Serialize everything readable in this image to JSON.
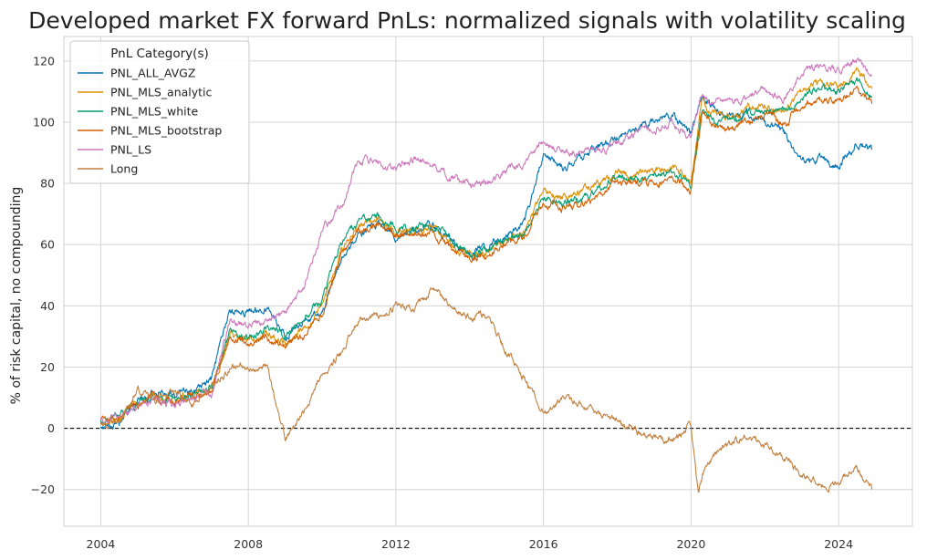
{
  "chart_data": {
    "type": "line",
    "title": "Developed market FX forward PnLs: normalized signals with volatility scaling",
    "xlabel": "",
    "ylabel": "% of risk capital, no compounding",
    "xlim": [
      2003.0,
      2026.0
    ],
    "ylim": [
      -32,
      128
    ],
    "x_ticks": [
      2004,
      2008,
      2012,
      2016,
      2020,
      2024
    ],
    "y_ticks": [
      -20,
      0,
      20,
      40,
      60,
      80,
      100,
      120
    ],
    "grid": true,
    "zero_line": {
      "y": 0,
      "style": "dashed",
      "color": "#000000"
    },
    "legend": {
      "title": "PnL Category(s)",
      "placement": "top-left"
    },
    "series": [
      {
        "name": "PNL_ALL_AVGZ",
        "color": "#0173b2",
        "x": [
          2004.0,
          2004.5,
          2005.0,
          2005.5,
          2006.0,
          2006.5,
          2007.0,
          2007.5,
          2008.0,
          2008.5,
          2009.0,
          2009.5,
          2010.0,
          2010.5,
          2011.0,
          2011.5,
          2012.0,
          2012.5,
          2013.0,
          2013.5,
          2014.0,
          2014.5,
          2015.0,
          2015.5,
          2016.0,
          2016.5,
          2017.0,
          2017.5,
          2018.0,
          2018.5,
          2019.0,
          2019.5,
          2020.0,
          2020.3,
          2020.6,
          2021.0,
          2021.5,
          2022.0,
          2022.5,
          2023.0,
          2023.5,
          2024.0,
          2024.5,
          2024.9
        ],
        "y": [
          0,
          1,
          10,
          12,
          11,
          12,
          16,
          38,
          38,
          40,
          30,
          35,
          38,
          55,
          63,
          67,
          62,
          64,
          66,
          62,
          57,
          60,
          63,
          68,
          90,
          85,
          88,
          92,
          95,
          98,
          100,
          102,
          97,
          108,
          105,
          102,
          103,
          100,
          97,
          88,
          88,
          86,
          93,
          91
        ]
      },
      {
        "name": "PNL_MLS_analytic",
        "color": "#de8f05",
        "x": [
          2004.0,
          2004.5,
          2005.0,
          2005.5,
          2006.0,
          2006.5,
          2007.0,
          2007.5,
          2008.0,
          2008.5,
          2009.0,
          2009.5,
          2010.0,
          2010.5,
          2011.0,
          2011.5,
          2012.0,
          2012.5,
          2013.0,
          2013.5,
          2014.0,
          2014.5,
          2015.0,
          2015.5,
          2016.0,
          2016.5,
          2017.0,
          2017.5,
          2018.0,
          2018.5,
          2019.0,
          2019.5,
          2020.0,
          2020.3,
          2020.6,
          2021.0,
          2021.5,
          2022.0,
          2022.5,
          2023.0,
          2023.5,
          2024.0,
          2024.5,
          2024.9
        ],
        "y": [
          2,
          4,
          8,
          10,
          9,
          11,
          13,
          30,
          29,
          31,
          28,
          32,
          40,
          58,
          66,
          68,
          64,
          64,
          66,
          60,
          56,
          58,
          62,
          64,
          78,
          75,
          77,
          80,
          84,
          83,
          84,
          85,
          80,
          106,
          103,
          102,
          104,
          106,
          104,
          110,
          113,
          112,
          117,
          111
        ]
      },
      {
        "name": "PNL_MLS_white",
        "color": "#029e73",
        "x": [
          2004.0,
          2004.5,
          2005.0,
          2005.5,
          2006.0,
          2006.5,
          2007.0,
          2007.5,
          2008.0,
          2008.5,
          2009.0,
          2009.5,
          2010.0,
          2010.5,
          2011.0,
          2011.5,
          2012.0,
          2012.5,
          2013.0,
          2013.5,
          2014.0,
          2014.5,
          2015.0,
          2015.5,
          2016.0,
          2016.5,
          2017.0,
          2017.5,
          2018.0,
          2018.5,
          2019.0,
          2019.5,
          2020.0,
          2020.3,
          2020.6,
          2021.0,
          2021.5,
          2022.0,
          2022.5,
          2023.0,
          2023.5,
          2024.0,
          2024.5,
          2024.9
        ],
        "y": [
          2,
          4,
          8,
          10,
          9,
          11,
          13,
          31,
          30,
          32,
          30,
          36,
          42,
          60,
          68,
          69,
          65,
          65,
          67,
          61,
          57,
          59,
          62,
          64,
          76,
          74,
          75,
          78,
          82,
          82,
          82,
          83,
          79,
          104,
          101,
          100,
          102,
          104,
          103,
          108,
          111,
          110,
          114,
          108
        ]
      },
      {
        "name": "PNL_MLS_bootstrap",
        "color": "#d55e00",
        "x": [
          2004.0,
          2004.5,
          2005.0,
          2005.5,
          2006.0,
          2006.5,
          2007.0,
          2007.5,
          2008.0,
          2008.5,
          2009.0,
          2009.5,
          2010.0,
          2010.5,
          2011.0,
          2011.5,
          2012.0,
          2012.5,
          2013.0,
          2013.5,
          2014.0,
          2014.5,
          2015.0,
          2015.5,
          2016.0,
          2016.5,
          2017.0,
          2017.5,
          2018.0,
          2018.5,
          2019.0,
          2019.5,
          2020.0,
          2020.3,
          2020.6,
          2021.0,
          2021.5,
          2022.0,
          2022.5,
          2023.0,
          2023.5,
          2024.0,
          2024.5,
          2024.9
        ],
        "y": [
          2,
          4,
          8,
          10,
          9,
          11,
          13,
          30,
          28,
          30,
          27,
          30,
          38,
          56,
          65,
          67,
          63,
          63,
          65,
          59,
          55,
          57,
          61,
          63,
          74,
          72,
          73,
          76,
          80,
          80,
          80,
          81,
          78,
          102,
          99,
          98,
          100,
          102,
          100,
          105,
          108,
          107,
          110,
          106
        ]
      },
      {
        "name": "PNL_LS",
        "color": "#cc78bc",
        "x": [
          2004.0,
          2004.5,
          2005.0,
          2005.5,
          2006.0,
          2006.5,
          2007.0,
          2007.5,
          2008.0,
          2008.5,
          2009.0,
          2009.5,
          2010.0,
          2010.5,
          2011.0,
          2011.5,
          2012.0,
          2012.5,
          2013.0,
          2013.5,
          2014.0,
          2014.5,
          2015.0,
          2015.5,
          2016.0,
          2016.5,
          2017.0,
          2017.5,
          2018.0,
          2018.5,
          2019.0,
          2019.5,
          2020.0,
          2020.3,
          2020.6,
          2021.0,
          2021.5,
          2022.0,
          2022.5,
          2023.0,
          2023.5,
          2024.0,
          2024.5,
          2024.9
        ],
        "y": [
          2,
          4,
          7,
          9,
          8,
          10,
          12,
          35,
          33,
          36,
          38,
          45,
          65,
          72,
          88,
          87,
          85,
          88,
          86,
          82,
          80,
          81,
          84,
          87,
          94,
          91,
          90,
          91,
          93,
          96,
          98,
          100,
          95,
          108,
          106,
          107,
          108,
          110,
          108,
          116,
          118,
          117,
          120,
          115
        ]
      },
      {
        "name": "Long",
        "color": "#c28140",
        "x": [
          2004.0,
          2004.5,
          2005.0,
          2005.5,
          2006.0,
          2006.5,
          2007.0,
          2007.5,
          2008.0,
          2008.5,
          2009.0,
          2009.5,
          2010.0,
          2010.5,
          2011.0,
          2011.5,
          2012.0,
          2012.5,
          2013.0,
          2013.5,
          2014.0,
          2014.5,
          2015.0,
          2015.5,
          2016.0,
          2016.5,
          2017.0,
          2017.5,
          2018.0,
          2018.5,
          2019.0,
          2019.5,
          2020.0,
          2020.2,
          2020.4,
          2021.0,
          2021.5,
          2022.0,
          2022.5,
          2023.0,
          2023.5,
          2024.0,
          2024.5,
          2024.9
        ],
        "y": [
          2,
          3,
          12,
          9,
          12,
          8,
          13,
          20,
          19,
          20,
          -3,
          5,
          18,
          24,
          35,
          37,
          40,
          38,
          46,
          40,
          36,
          38,
          25,
          16,
          5,
          10,
          8,
          4,
          3,
          -1,
          -2,
          -4,
          2,
          -22,
          -12,
          -5,
          -3,
          -5,
          -10,
          -15,
          -18,
          -18,
          -12,
          -20
        ]
      }
    ]
  }
}
